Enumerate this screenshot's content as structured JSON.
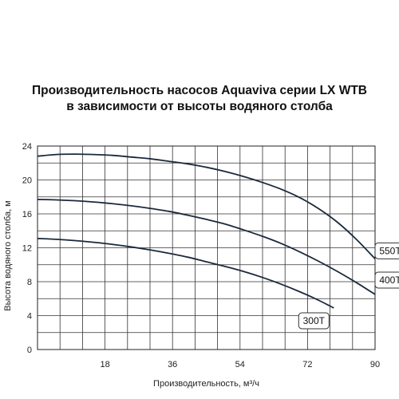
{
  "chart_data": {
    "type": "line",
    "title_lines": [
      "Производительность насосов Aquaviva серии LX WTB",
      "в зависимости от высоты водяного столба"
    ],
    "xlabel": "Производительность, м³/ч",
    "ylabel": "Высота водяного столба, м",
    "xlim": [
      0,
      90
    ],
    "ylim": [
      0,
      24
    ],
    "x_ticks": [
      18,
      36,
      54,
      72,
      90
    ],
    "y_ticks": [
      0,
      4,
      8,
      12,
      16,
      20,
      24
    ],
    "grid": true,
    "line_color": "#1a2a3c",
    "series": [
      {
        "name": "550T",
        "x": [
          0,
          5,
          10,
          15,
          20,
          25,
          30,
          35,
          40,
          45,
          50,
          55,
          60,
          65,
          70,
          75,
          80,
          85,
          90
        ],
        "values": [
          22.8,
          23.0,
          23.05,
          23.0,
          22.9,
          22.7,
          22.5,
          22.2,
          21.9,
          21.5,
          21.0,
          20.4,
          19.7,
          18.9,
          17.9,
          16.6,
          15.0,
          13.0,
          10.7
        ]
      },
      {
        "name": "400T",
        "x": [
          0,
          5,
          10,
          15,
          20,
          25,
          30,
          35,
          40,
          45,
          50,
          55,
          60,
          65,
          70,
          75,
          80,
          85,
          90
        ],
        "values": [
          17.7,
          17.65,
          17.55,
          17.4,
          17.2,
          16.95,
          16.65,
          16.3,
          15.85,
          15.35,
          14.8,
          14.1,
          13.35,
          12.5,
          11.5,
          10.4,
          9.2,
          7.9,
          6.5
        ]
      },
      {
        "name": "300T",
        "x": [
          0,
          5,
          10,
          15,
          20,
          25,
          30,
          35,
          40,
          45,
          50,
          55,
          60,
          65,
          70,
          75,
          79
        ],
        "values": [
          13.1,
          13.0,
          12.85,
          12.65,
          12.4,
          12.1,
          11.75,
          11.35,
          10.9,
          10.35,
          9.8,
          9.2,
          8.5,
          7.7,
          6.8,
          5.8,
          4.9
        ]
      }
    ]
  }
}
